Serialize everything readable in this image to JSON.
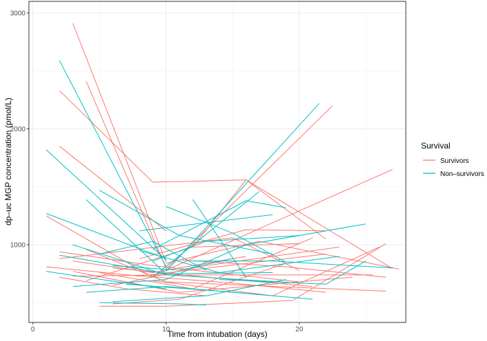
{
  "chart_data": {
    "type": "line",
    "xlabel": "Time from intubation (days)",
    "ylabel": "dp–uc MGP concentration (pmol/L)",
    "xlim": [
      -0.3,
      28.0
    ],
    "ylim": [
      330,
      3100
    ],
    "xticks": [
      0,
      10,
      20
    ],
    "yticks": [
      1000,
      2000,
      3000
    ],
    "x_tick_labels": [
      "0",
      "10",
      "20"
    ],
    "y_tick_labels": [
      "1000",
      "2000",
      "3000"
    ],
    "grid": true,
    "legend": {
      "title": "Survival",
      "position": "right",
      "entries": [
        {
          "name": "Survivors",
          "color": "#F8766D"
        },
        {
          "name": "Non–survivors",
          "color": "#00BFC4"
        }
      ]
    },
    "series": [
      {
        "name": "Survivors",
        "color": "#F8766D",
        "lines": [
          [
            [
              3,
              2910
            ],
            [
              10,
              850
            ]
          ],
          [
            [
              2,
              2330
            ],
            [
              9,
              1540
            ],
            [
              16,
              1560
            ],
            [
              27,
              795
            ]
          ],
          [
            [
              2,
              1850
            ],
            [
              10,
              1120
            ]
          ],
          [
            [
              4,
              2410
            ],
            [
              10,
              800
            ]
          ],
          [
            [
              1,
              1250
            ],
            [
              9,
              720
            ]
          ],
          [
            [
              10,
              790
            ],
            [
              22.5,
              2200
            ]
          ],
          [
            [
              9,
              730
            ],
            [
              27,
              1650
            ]
          ],
          [
            [
              12,
              980
            ],
            [
              16,
              1560
            ],
            [
              22,
              1050
            ]
          ],
          [
            [
              5,
              470
            ],
            [
              10,
              470
            ],
            [
              16,
              500
            ],
            [
              19.5,
              520
            ],
            [
              26.5,
              1010
            ]
          ],
          [
            [
              6,
              490
            ],
            [
              11,
              530
            ],
            [
              19,
              840
            ]
          ],
          [
            [
              1,
              810
            ],
            [
              8,
              730
            ],
            [
              22,
              920
            ]
          ],
          [
            [
              2,
              880
            ],
            [
              15,
              1060
            ],
            [
              20,
              780
            ]
          ],
          [
            [
              3,
              770
            ],
            [
              11,
              590
            ],
            [
              24,
              720
            ]
          ],
          [
            [
              4,
              960
            ],
            [
              10,
              680
            ],
            [
              26.5,
              600
            ]
          ],
          [
            [
              2,
              940
            ],
            [
              9,
              820
            ],
            [
              20,
              680
            ]
          ],
          [
            [
              3,
              730
            ],
            [
              10,
              740
            ],
            [
              25.5,
              740
            ]
          ],
          [
            [
              6,
              650
            ],
            [
              13,
              820
            ],
            [
              23,
              980
            ]
          ],
          [
            [
              8,
              880
            ],
            [
              16,
              1130
            ],
            [
              22,
              1120
            ]
          ],
          [
            [
              5,
              760
            ],
            [
              12,
              620
            ],
            [
              21,
              1060
            ]
          ],
          [
            [
              9,
              690
            ],
            [
              18,
              560
            ],
            [
              26,
              980
            ]
          ],
          [
            [
              11,
              870
            ],
            [
              19,
              810
            ],
            [
              26.5,
              720
            ]
          ],
          [
            [
              4,
              690
            ],
            [
              12,
              980
            ],
            [
              20,
              1010
            ]
          ],
          [
            [
              7,
              740
            ],
            [
              15,
              670
            ],
            [
              22,
              590
            ]
          ],
          [
            [
              10,
              840
            ],
            [
              17,
              1030
            ],
            [
              27.5,
              790
            ]
          ],
          [
            [
              3,
              860
            ],
            [
              9,
              760
            ],
            [
              16,
              900
            ]
          ],
          [
            [
              6,
              800
            ],
            [
              14,
              710
            ],
            [
              21,
              640
            ]
          ],
          [
            [
              2,
              720
            ],
            [
              7,
              620
            ],
            [
              13,
              560
            ]
          ]
        ]
      },
      {
        "name": "Non–survivors",
        "color": "#00BFC4",
        "lines": [
          [
            [
              2,
              2590
            ],
            [
              10,
              810
            ]
          ],
          [
            [
              1,
              1820
            ],
            [
              10,
              870
            ]
          ],
          [
            [
              10,
              770
            ],
            [
              21.5,
              2220
            ]
          ],
          [
            [
              9,
              720
            ],
            [
              17,
              1460
            ]
          ],
          [
            [
              5,
              1470
            ],
            [
              11,
              1080
            ],
            [
              18,
              920
            ]
          ],
          [
            [
              1,
              1270
            ],
            [
              10,
              880
            ]
          ],
          [
            [
              4,
              1390
            ],
            [
              10,
              750
            ]
          ],
          [
            [
              9,
              960
            ],
            [
              16,
              1380
            ],
            [
              19,
              1320
            ]
          ],
          [
            [
              12,
              1390
            ],
            [
              16,
              720
            ]
          ],
          [
            [
              5,
              920
            ],
            [
              9,
              1030
            ],
            [
              13,
              780
            ]
          ],
          [
            [
              1,
              770
            ],
            [
              10,
              620
            ]
          ],
          [
            [
              2,
              910
            ],
            [
              10,
              750
            ],
            [
              18,
              760
            ]
          ],
          [
            [
              5,
              500
            ],
            [
              11,
              490
            ],
            [
              13,
              480
            ]
          ],
          [
            [
              6,
              510
            ],
            [
              13,
              560
            ],
            [
              19,
              700
            ]
          ],
          [
            [
              3,
              640
            ],
            [
              10,
              700
            ],
            [
              16,
              1000
            ],
            [
              25,
              1180
            ]
          ],
          [
            [
              8,
              1120
            ],
            [
              18,
              1260
            ]
          ],
          [
            [
              3,
              1000
            ],
            [
              10,
              740
            ],
            [
              20,
              670
            ]
          ],
          [
            [
              7,
              660
            ],
            [
              14,
              600
            ],
            [
              21,
              530
            ]
          ],
          [
            [
              12,
              860
            ],
            [
              18,
              860
            ],
            [
              27,
              800
            ]
          ],
          [
            [
              9,
              860
            ],
            [
              13,
              1030
            ],
            [
              20,
              1080
            ]
          ],
          [
            [
              14,
              700
            ],
            [
              22,
              660
            ],
            [
              25,
              860
            ]
          ],
          [
            [
              6,
              820
            ],
            [
              11,
              780
            ],
            [
              15,
              880
            ]
          ],
          [
            [
              4,
              590
            ],
            [
              10,
              640
            ],
            [
              17,
              570
            ]
          ],
          [
            [
              10,
              1330
            ],
            [
              15,
              1100
            ],
            [
              19,
              850
            ]
          ],
          [
            [
              8,
              950
            ],
            [
              14,
              760
            ],
            [
              23,
              900
            ]
          ]
        ]
      }
    ]
  }
}
